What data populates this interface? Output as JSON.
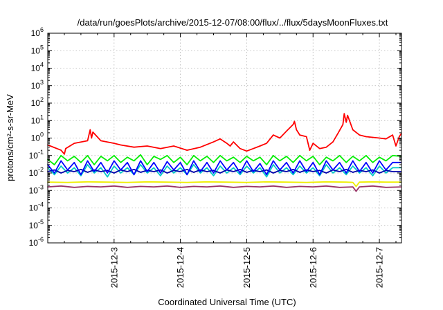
{
  "chart_data": {
    "type": "line",
    "title": "/data/run/goesPlots/archive/2015-12-07/08:00/flux/../flux/5daysMoonFluxes.txt",
    "xlabel": "Coordinated Universal Time (UTC)",
    "ylabel": "protons/cm²-s-sr-MeV",
    "y_scale": "log",
    "ylim": [
      1e-06,
      1000000.0
    ],
    "y_ticks": [
      {
        "exp": "-6",
        "value": 1e-06
      },
      {
        "exp": "-5",
        "value": 1e-05
      },
      {
        "exp": "-4",
        "value": 0.0001
      },
      {
        "exp": "-3",
        "value": 0.001
      },
      {
        "exp": "-2",
        "value": 0.01
      },
      {
        "exp": "-1",
        "value": 0.1
      },
      {
        "exp": "0",
        "value": 1
      },
      {
        "exp": "1",
        "value": 10
      },
      {
        "exp": "2",
        "value": 100
      },
      {
        "exp": "3",
        "value": 1000
      },
      {
        "exp": "4",
        "value": 10000
      },
      {
        "exp": "5",
        "value": 100000
      },
      {
        "exp": "6",
        "value": 1000000
      }
    ],
    "xlim": [
      "2015-12-02 00:00",
      "2015-12-07 08:00"
    ],
    "x_ticks": [
      "2015-12-3",
      "2015-12-4",
      "2015-12-5",
      "2015-12-6",
      "2015-12-7"
    ],
    "x_tick_days": [
      3,
      4,
      5,
      6,
      7
    ],
    "grid": true,
    "colors": {
      "red": "#ff0000",
      "green": "#00ee00",
      "cyan": "#00c8c8",
      "blue": "#0000ff",
      "navy": "#0000aa",
      "yellow": "#eeee00",
      "purple": "#993366"
    },
    "series": [
      {
        "color": "red",
        "x": [
          2.0,
          2.2,
          2.25,
          2.27,
          2.4,
          2.6,
          2.64,
          2.66,
          2.68,
          2.8,
          3.0,
          3.1,
          3.3,
          3.5,
          3.7,
          3.9,
          4.1,
          4.3,
          4.5,
          4.6,
          4.7,
          4.75,
          4.8,
          4.9,
          5.0,
          5.1,
          5.2,
          5.3,
          5.4,
          5.5,
          5.6,
          5.7,
          5.72,
          5.75,
          5.8,
          5.9,
          5.95,
          6.0,
          6.1,
          6.2,
          6.3,
          6.38,
          6.45,
          6.47,
          6.5,
          6.52,
          6.6,
          6.7,
          6.8,
          7.0,
          7.1,
          7.2,
          7.25,
          7.3,
          7.33
        ],
        "y": [
          0.4,
          0.2,
          0.12,
          0.25,
          0.5,
          0.7,
          3.0,
          1.0,
          2.2,
          0.7,
          0.5,
          0.4,
          0.3,
          0.35,
          0.25,
          0.35,
          0.2,
          0.3,
          0.6,
          0.9,
          0.5,
          0.35,
          0.6,
          0.25,
          0.18,
          0.25,
          0.35,
          0.5,
          1.5,
          1.0,
          2.5,
          6.0,
          9.0,
          3.0,
          1.5,
          1.2,
          0.2,
          0.5,
          0.25,
          0.3,
          0.6,
          2.0,
          6.0,
          25.0,
          8.0,
          20.0,
          3.0,
          1.5,
          1.2,
          1.0,
          0.9,
          1.5,
          0.35,
          1.2,
          1.8
        ]
      },
      {
        "color": "green",
        "x": [
          2.0,
          2.1,
          2.2,
          2.3,
          2.4,
          2.5,
          2.6,
          2.7,
          2.8,
          2.9,
          3.0,
          3.1,
          3.2,
          3.3,
          3.4,
          3.5,
          3.6,
          3.7,
          3.8,
          3.9,
          4.0,
          4.1,
          4.2,
          4.3,
          4.4,
          4.5,
          4.6,
          4.7,
          4.8,
          4.9,
          5.0,
          5.1,
          5.2,
          5.3,
          5.4,
          5.5,
          5.6,
          5.7,
          5.8,
          5.9,
          6.0,
          6.1,
          6.2,
          6.3,
          6.4,
          6.5,
          6.6,
          6.7,
          6.8,
          6.9,
          7.0,
          7.1,
          7.2,
          7.33
        ],
        "y": [
          0.06,
          0.03,
          0.1,
          0.05,
          0.09,
          0.04,
          0.1,
          0.03,
          0.09,
          0.05,
          0.1,
          0.04,
          0.08,
          0.05,
          0.11,
          0.03,
          0.09,
          0.06,
          0.1,
          0.04,
          0.08,
          0.03,
          0.1,
          0.05,
          0.09,
          0.04,
          0.1,
          0.05,
          0.08,
          0.04,
          0.09,
          0.05,
          0.08,
          0.03,
          0.1,
          0.05,
          0.09,
          0.04,
          0.1,
          0.05,
          0.09,
          0.03,
          0.08,
          0.05,
          0.1,
          0.04,
          0.09,
          0.05,
          0.1,
          0.04,
          0.08,
          0.05,
          0.1,
          0.09
        ]
      },
      {
        "color": "cyan",
        "x": [
          2.0,
          2.1,
          2.2,
          2.3,
          2.4,
          2.5,
          2.6,
          2.7,
          2.8,
          2.9,
          3.0,
          3.1,
          3.2,
          3.3,
          3.4,
          3.5,
          3.6,
          3.7,
          3.8,
          3.9,
          4.0,
          4.1,
          4.2,
          4.3,
          4.4,
          4.5,
          4.6,
          4.7,
          4.8,
          4.9,
          5.0,
          5.1,
          5.2,
          5.3,
          5.4,
          5.5,
          5.6,
          5.7,
          5.8,
          5.9,
          6.0,
          6.1,
          6.2,
          6.3,
          6.4,
          6.5,
          6.6,
          6.7,
          6.8,
          6.9,
          7.0,
          7.1,
          7.2,
          7.33
        ],
        "y": [
          0.02,
          0.008,
          0.025,
          0.01,
          0.02,
          0.007,
          0.03,
          0.01,
          0.02,
          0.006,
          0.025,
          0.01,
          0.02,
          0.008,
          0.03,
          0.01,
          0.02,
          0.007,
          0.025,
          0.01,
          0.02,
          0.008,
          0.03,
          0.01,
          0.02,
          0.007,
          0.025,
          0.01,
          0.02,
          0.008,
          0.025,
          0.01,
          0.02,
          0.006,
          0.03,
          0.01,
          0.02,
          0.008,
          0.025,
          0.01,
          0.02,
          0.007,
          0.03,
          0.01,
          0.02,
          0.008,
          0.025,
          0.01,
          0.02,
          0.007,
          0.025,
          0.01,
          0.02,
          0.02
        ]
      },
      {
        "color": "blue",
        "x": [
          2.0,
          2.1,
          2.2,
          2.3,
          2.4,
          2.5,
          2.6,
          2.7,
          2.8,
          2.9,
          3.0,
          3.1,
          3.2,
          3.3,
          3.4,
          3.5,
          3.6,
          3.7,
          3.8,
          3.9,
          4.0,
          4.1,
          4.2,
          4.3,
          4.4,
          4.5,
          4.6,
          4.7,
          4.8,
          4.9,
          5.0,
          5.1,
          5.2,
          5.3,
          5.4,
          5.5,
          5.6,
          5.7,
          5.8,
          5.9,
          6.0,
          6.1,
          6.2,
          6.3,
          6.4,
          6.5,
          6.6,
          6.7,
          6.8,
          6.9,
          7.0,
          7.1,
          7.2,
          7.33
        ],
        "y": [
          0.03,
          0.01,
          0.05,
          0.015,
          0.04,
          0.008,
          0.05,
          0.012,
          0.04,
          0.01,
          0.05,
          0.015,
          0.04,
          0.008,
          0.05,
          0.012,
          0.04,
          0.01,
          0.045,
          0.015,
          0.04,
          0.008,
          0.05,
          0.012,
          0.04,
          0.01,
          0.05,
          0.015,
          0.04,
          0.01,
          0.05,
          0.012,
          0.035,
          0.008,
          0.05,
          0.015,
          0.04,
          0.01,
          0.05,
          0.012,
          0.04,
          0.008,
          0.05,
          0.015,
          0.04,
          0.01,
          0.05,
          0.012,
          0.04,
          0.01,
          0.05,
          0.015,
          0.04,
          0.04
        ]
      },
      {
        "color": "navy",
        "x": [
          2.0,
          2.1,
          2.2,
          2.3,
          2.4,
          2.5,
          2.6,
          2.7,
          2.8,
          2.9,
          3.0,
          3.1,
          3.2,
          3.3,
          3.4,
          3.5,
          3.6,
          3.7,
          3.8,
          3.9,
          4.0,
          4.1,
          4.2,
          4.3,
          4.4,
          4.5,
          4.6,
          4.7,
          4.8,
          4.9,
          5.0,
          5.1,
          5.2,
          5.3,
          5.4,
          5.5,
          5.6,
          5.7,
          5.8,
          5.9,
          6.0,
          6.1,
          6.2,
          6.3,
          6.4,
          6.5,
          6.6,
          6.7,
          6.8,
          6.9,
          7.0,
          7.1,
          7.2,
          7.33
        ],
        "y": [
          0.012,
          0.015,
          0.01,
          0.014,
          0.012,
          0.016,
          0.011,
          0.015,
          0.012,
          0.014,
          0.01,
          0.015,
          0.012,
          0.016,
          0.011,
          0.014,
          0.012,
          0.015,
          0.01,
          0.014,
          0.012,
          0.016,
          0.011,
          0.015,
          0.012,
          0.014,
          0.01,
          0.015,
          0.012,
          0.016,
          0.011,
          0.014,
          0.012,
          0.015,
          0.01,
          0.014,
          0.012,
          0.016,
          0.011,
          0.015,
          0.012,
          0.014,
          0.01,
          0.015,
          0.012,
          0.016,
          0.011,
          0.014,
          0.012,
          0.015,
          0.01,
          0.014,
          0.012,
          0.012
        ]
      },
      {
        "color": "yellow",
        "x": [
          2.0,
          2.3,
          2.6,
          2.9,
          3.2,
          3.5,
          3.8,
          4.1,
          4.4,
          4.7,
          5.0,
          5.3,
          5.6,
          5.9,
          6.2,
          6.5,
          6.6,
          6.65,
          6.7,
          6.9,
          7.1,
          7.33
        ],
        "y": [
          0.003,
          0.0029,
          0.0031,
          0.003,
          0.0029,
          0.0031,
          0.003,
          0.0029,
          0.0031,
          0.003,
          0.0029,
          0.0031,
          0.003,
          0.0029,
          0.0031,
          0.003,
          0.0029,
          0.0017,
          0.003,
          0.0031,
          0.003,
          0.003
        ]
      },
      {
        "color": "purple",
        "x": [
          2.0,
          2.2,
          2.4,
          2.6,
          2.8,
          3.0,
          3.2,
          3.4,
          3.6,
          3.8,
          4.0,
          4.2,
          4.4,
          4.6,
          4.8,
          5.0,
          5.2,
          5.4,
          5.6,
          5.8,
          6.0,
          6.2,
          6.4,
          6.6,
          6.65,
          6.7,
          6.9,
          7.1,
          7.33
        ],
        "y": [
          0.0016,
          0.0018,
          0.0015,
          0.0017,
          0.0016,
          0.0018,
          0.0015,
          0.0017,
          0.0016,
          0.0018,
          0.0015,
          0.0017,
          0.0016,
          0.0018,
          0.0015,
          0.0017,
          0.0016,
          0.0018,
          0.0015,
          0.0017,
          0.0016,
          0.0018,
          0.0015,
          0.0016,
          0.0009,
          0.0016,
          0.0018,
          0.0015,
          0.0016
        ]
      }
    ]
  }
}
